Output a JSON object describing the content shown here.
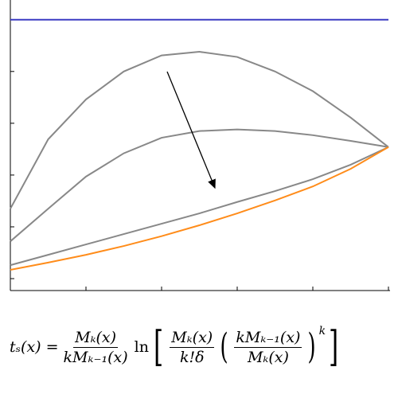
{
  "chart_data": {
    "type": "line",
    "x": [
      0,
      0.1,
      0.2,
      0.3,
      0.4,
      0.5,
      0.6,
      0.7,
      0.8,
      0.9,
      1
    ],
    "series": [
      {
        "color": "#3b3bc4",
        "values": [
          5,
          5,
          5,
          5,
          5,
          5,
          5,
          5,
          5,
          5,
          5
        ]
      },
      {
        "color": "#888888",
        "values": [
          1.35,
          2.69,
          3.46,
          4.0,
          4.31,
          4.38,
          4.28,
          4.0,
          3.62,
          3.11,
          2.54
        ]
      },
      {
        "color": "#888888",
        "values": [
          0.72,
          1.35,
          1.97,
          2.42,
          2.72,
          2.85,
          2.88,
          2.85,
          2.77,
          2.66,
          2.54
        ]
      },
      {
        "color": "#888888",
        "values": [
          0.26,
          0.46,
          0.66,
          0.86,
          1.06,
          1.26,
          1.48,
          1.69,
          1.92,
          2.2,
          2.54
        ]
      },
      {
        "color": "#ff8c1a",
        "values": [
          0.17,
          0.31,
          0.46,
          0.63,
          0.82,
          1.03,
          1.26,
          1.51,
          1.78,
          2.12,
          2.54
        ]
      }
    ],
    "xlim": [
      0,
      1
    ],
    "xticks": [
      0,
      0.2,
      0.4,
      0.6,
      0.8,
      1
    ],
    "ylim": [
      -0.23,
      5.38
    ],
    "yticks": [
      0,
      1,
      2,
      3,
      4,
      5
    ]
  },
  "formula": {
    "lhs": "tₛ(x) =",
    "frac1": {
      "num": "Mₖ(x)",
      "den": "kMₖ₋₁(x)"
    },
    "ln": "ln",
    "frac2": {
      "num": "Mₖ(x)",
      "den": "k!δ"
    },
    "frac3": {
      "num": "kMₖ₋₁(x)",
      "den": "Mₖ(x)"
    },
    "power": "k"
  }
}
